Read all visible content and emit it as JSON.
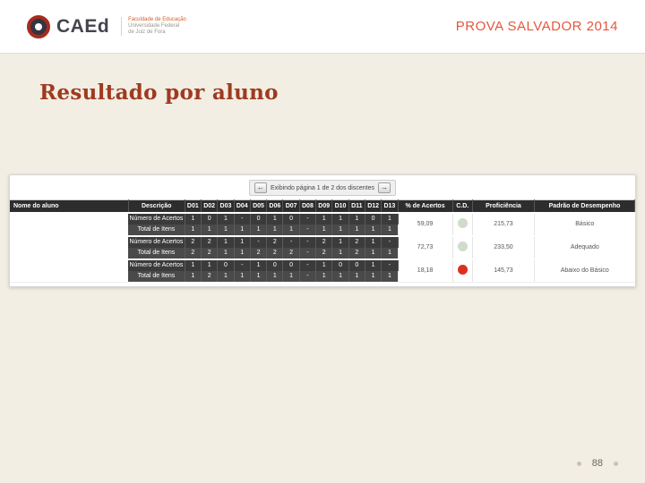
{
  "header": {
    "brand": "CAEd",
    "brand_lines": [
      "Faculdade de Educação",
      "Universidade Federal",
      "de Juiz de Fora"
    ],
    "title": "PROVA SALVADOR 2014"
  },
  "slide": {
    "title": "Resultado por aluno",
    "page_number": "88"
  },
  "pagination": {
    "prev_icon": "←",
    "next_icon": "→",
    "label": "Exibindo página 1 de 2 dos discentes"
  },
  "table": {
    "columns": [
      "Nome do aluno",
      "Descrição",
      "D01",
      "D02",
      "D03",
      "D04",
      "D05",
      "D06",
      "D07",
      "D08",
      "D09",
      "D10",
      "D11",
      "D12",
      "D13",
      "% de Acertos",
      "C.D.",
      "Proficiência",
      "Padrão de Desempenho"
    ],
    "rows": [
      {
        "name": "",
        "pairs": [
          {
            "desc": "Número de Acertos",
            "values": [
              "1",
              "0",
              "1",
              "-",
              "0",
              "1",
              "0",
              "-",
              "1",
              "1",
              "1",
              "0",
              "1"
            ]
          },
          {
            "desc": "Total de Itens",
            "values": [
              "1",
              "1",
              "1",
              "1",
              "1",
              "1",
              "1",
              "-",
              "1",
              "1",
              "1",
              "1",
              "1"
            ]
          }
        ],
        "percent": "59,09",
        "cd_color": "#cfdccb",
        "proficiencia": "215,73",
        "padrao": "Básico"
      },
      {
        "name": "",
        "pairs": [
          {
            "desc": "Número de Acertos",
            "values": [
              "2",
              "2",
              "1",
              "1",
              "-",
              "2",
              "-",
              "-",
              "2",
              "1",
              "2",
              "1",
              "-"
            ]
          },
          {
            "desc": "Total de Itens",
            "values": [
              "2",
              "2",
              "1",
              "1",
              "2",
              "2",
              "2",
              "-",
              "2",
              "1",
              "2",
              "1",
              "1"
            ]
          }
        ],
        "percent": "72,73",
        "cd_color": "#cfdccb",
        "proficiencia": "233,50",
        "padrao": "Adequado"
      },
      {
        "name": "",
        "pairs": [
          {
            "desc": "Número de Acertos",
            "values": [
              "1",
              "1",
              "0",
              "-",
              "1",
              "0",
              "0",
              "-",
              "1",
              "0",
              "0",
              "1",
              "-"
            ]
          },
          {
            "desc": "Total de Itens",
            "values": [
              "1",
              "2",
              "1",
              "1",
              "1",
              "1",
              "1",
              "-",
              "1",
              "1",
              "1",
              "1",
              "1"
            ]
          }
        ],
        "percent": "18,18",
        "cd_color": "#dd2f1f",
        "proficiencia": "145,73",
        "padrao": "Abaixo do Básico"
      }
    ]
  }
}
